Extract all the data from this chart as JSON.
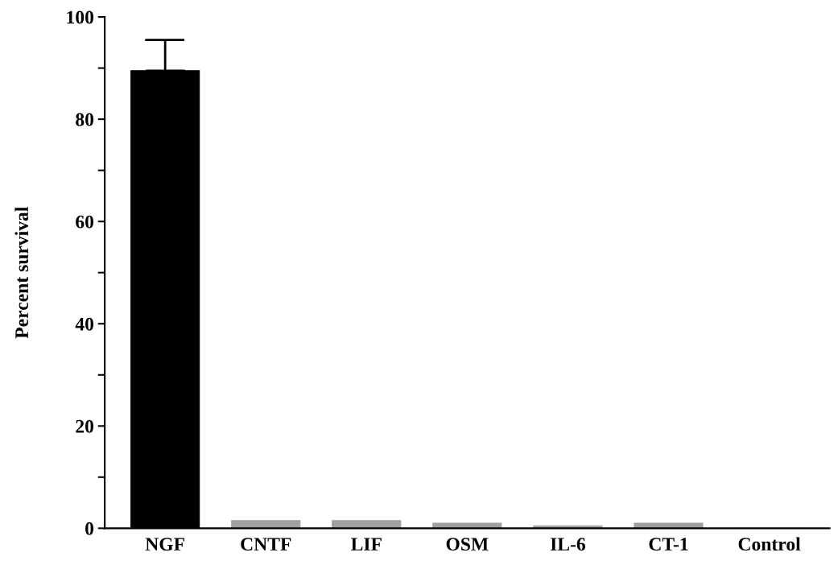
{
  "chart_data": {
    "type": "bar",
    "ylabel": "Percent survival",
    "categories": [
      "NGF",
      "CNTF",
      "LIF",
      "OSM",
      "IL-6",
      "CT-1",
      "Control"
    ],
    "values": [
      89.5,
      1.5,
      1.5,
      1,
      0.5,
      1,
      0
    ],
    "errors": [
      [
        89.5,
        95.5
      ],
      null,
      null,
      null,
      null,
      null,
      null
    ],
    "colors": [
      "#000000",
      "#a0a0a0",
      "#a0a0a0",
      "#a0a0a0",
      "#a0a0a0",
      "#a0a0a0",
      "#a0a0a0"
    ],
    "ylim": [
      0,
      100
    ],
    "yticks": [
      0,
      {
        "value": 10,
        "label": null
      },
      20,
      {
        "value": 30,
        "label": null
      },
      40,
      {
        "value": 50,
        "label": null
      },
      60,
      {
        "value": 70,
        "label": null
      },
      80,
      {
        "value": 90,
        "label": null
      },
      100
    ],
    "grid": false,
    "legend": false
  }
}
